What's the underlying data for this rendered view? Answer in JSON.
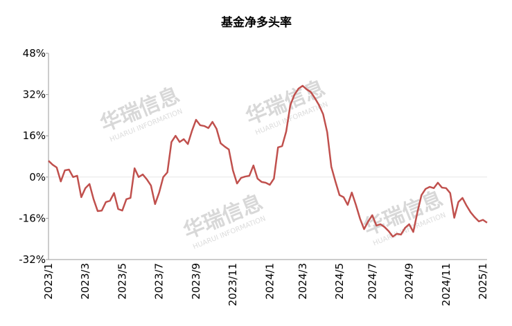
{
  "chart_data": {
    "type": "line",
    "title": "基金净多头率",
    "watermark": "华瑞信息",
    "watermark_sub": "HUARUI INFORMATION",
    "categories": [
      "2023/1",
      null,
      null,
      null,
      null,
      null,
      null,
      null,
      null,
      "2023/3",
      null,
      null,
      null,
      null,
      null,
      null,
      null,
      null,
      "2023/5",
      null,
      null,
      null,
      null,
      null,
      null,
      null,
      null,
      "2023/7",
      null,
      null,
      null,
      null,
      null,
      null,
      null,
      null,
      "2023/9",
      null,
      null,
      null,
      null,
      null,
      null,
      null,
      null,
      "2023/11",
      null,
      null,
      null,
      null,
      null,
      null,
      null,
      null,
      "2024/1",
      null,
      null,
      null,
      null,
      null,
      null,
      null,
      "2024/3",
      null,
      null,
      null,
      null,
      null,
      null,
      null,
      null,
      "2024/5",
      null,
      null,
      null,
      null,
      null,
      null,
      null,
      "2024/7",
      null,
      null,
      null,
      null,
      null,
      null,
      null,
      null,
      "2024/9",
      null,
      null,
      null,
      null,
      null,
      null,
      null,
      null,
      "2024/11",
      null,
      null,
      null,
      null,
      null,
      null,
      null,
      null,
      "2025/1",
      null
    ],
    "series": [
      {
        "name": "基金净多头率",
        "color": "#c0504d",
        "values": [
          6.3,
          4.8,
          3.7,
          -1.7,
          2.6,
          2.9,
          0,
          0.5,
          -7.8,
          -4.3,
          -2.7,
          -8.6,
          -13.2,
          -13,
          -9.7,
          -9.2,
          -6.2,
          -12.4,
          -13,
          -8.6,
          -8.1,
          3.4,
          0,
          1,
          -0.9,
          -3.3,
          -10.5,
          -6,
          0,
          1.8,
          13.6,
          16,
          13.6,
          14.7,
          12.8,
          17.9,
          22.2,
          20.1,
          19.8,
          19,
          21.4,
          18.7,
          13.1,
          11.8,
          10.7,
          2.6,
          -2.5,
          -0.3,
          0.2,
          0.5,
          4.5,
          -0.6,
          -1.9,
          -2.2,
          -3,
          -0.6,
          11.5,
          12,
          17.7,
          27.9,
          31.9,
          34.3,
          35.4,
          34,
          33,
          30.6,
          27.9,
          24.4,
          17.4,
          4,
          -1.7,
          -7,
          -7.8,
          -10.8,
          -6,
          -10.8,
          -16.1,
          -20.2,
          -17.2,
          -14.8,
          -18.8,
          -18.3,
          -19.4,
          -21,
          -23.1,
          -22,
          -22.3,
          -19.7,
          -18.3,
          -21.3,
          -13.7,
          -7,
          -4.6,
          -3.8,
          -4.3,
          -2.2,
          -4.1,
          -4.3,
          -6.2,
          -15.8,
          -9.7,
          -8.1,
          -11.1,
          -13.7,
          -15.6,
          -17.2,
          -16.6,
          -17.7
        ]
      }
    ],
    "ylim": [
      -32,
      48
    ],
    "yticks": [
      {
        "value": -32,
        "label": "-32%"
      },
      {
        "value": -16,
        "label": "-16%"
      },
      {
        "value": 0,
        "label": "0%"
      },
      {
        "value": 16,
        "label": "16%"
      },
      {
        "value": 32,
        "label": "32%"
      },
      {
        "value": 48,
        "label": "48%"
      }
    ],
    "grid": false
  }
}
